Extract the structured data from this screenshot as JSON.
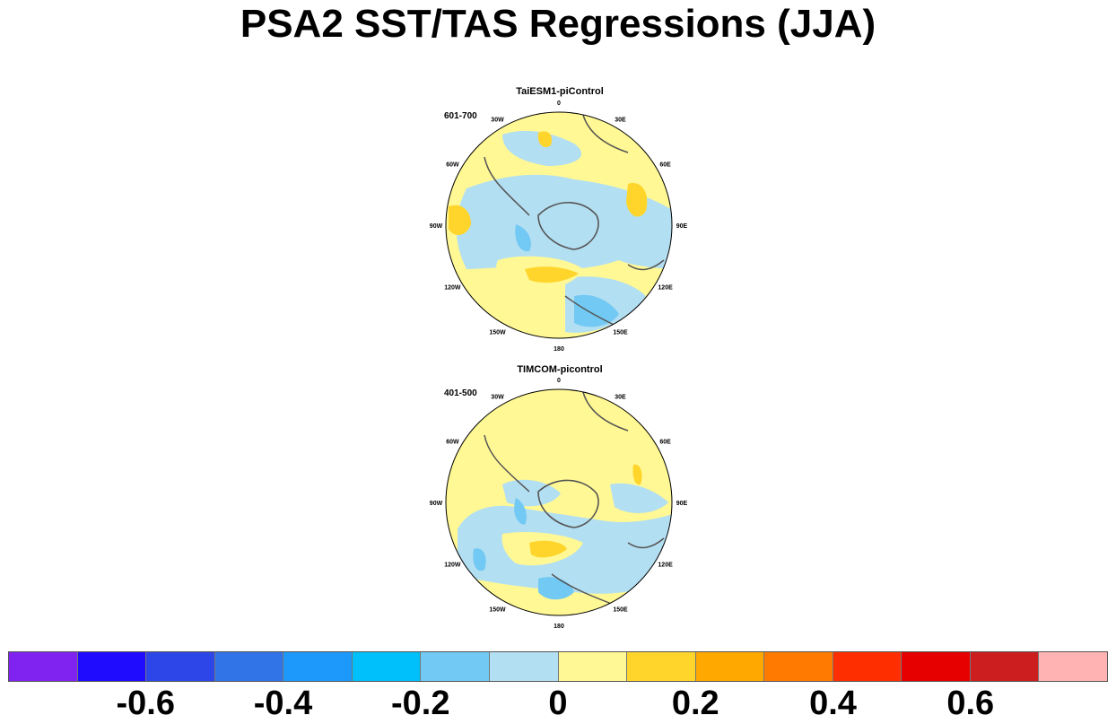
{
  "title": "PSA2 SST/TAS Regressions (JJA)",
  "panels": [
    {
      "model": "TaiESM1-piControl",
      "period": "601-700",
      "longitude_labels": [
        "0",
        "30E",
        "60E",
        "90E",
        "120E",
        "150E",
        "180",
        "150W",
        "120W",
        "90W",
        "60W",
        "30W"
      ]
    },
    {
      "model": "TIMCOM-picontrol",
      "period": "401-500",
      "longitude_labels": [
        "0",
        "30E",
        "60E",
        "90E",
        "120E",
        "150E",
        "180",
        "150W",
        "120W",
        "90W",
        "60W",
        "30W"
      ]
    }
  ],
  "colorbar": {
    "colors": [
      "#8022f0",
      "#1f0cff",
      "#2c46e8",
      "#3174e8",
      "#1c99fb",
      "#00c0fb",
      "#72c9f3",
      "#b3dff2",
      "#fff894",
      "#ffd52b",
      "#ffa900",
      "#ff7a00",
      "#ff2e00",
      "#e60000",
      "#cc1e1e",
      "#ffb3b3"
    ],
    "bounds": [
      -0.7,
      -0.6,
      -0.5,
      -0.4,
      -0.3,
      -0.2,
      -0.1,
      0,
      0.1,
      0.2,
      0.3,
      0.4,
      0.5,
      0.6,
      0.7
    ],
    "tick_labels": [
      "-0.6",
      "-0.4",
      "-0.2",
      "0",
      "0.2",
      "0.4",
      "0.6"
    ]
  }
}
